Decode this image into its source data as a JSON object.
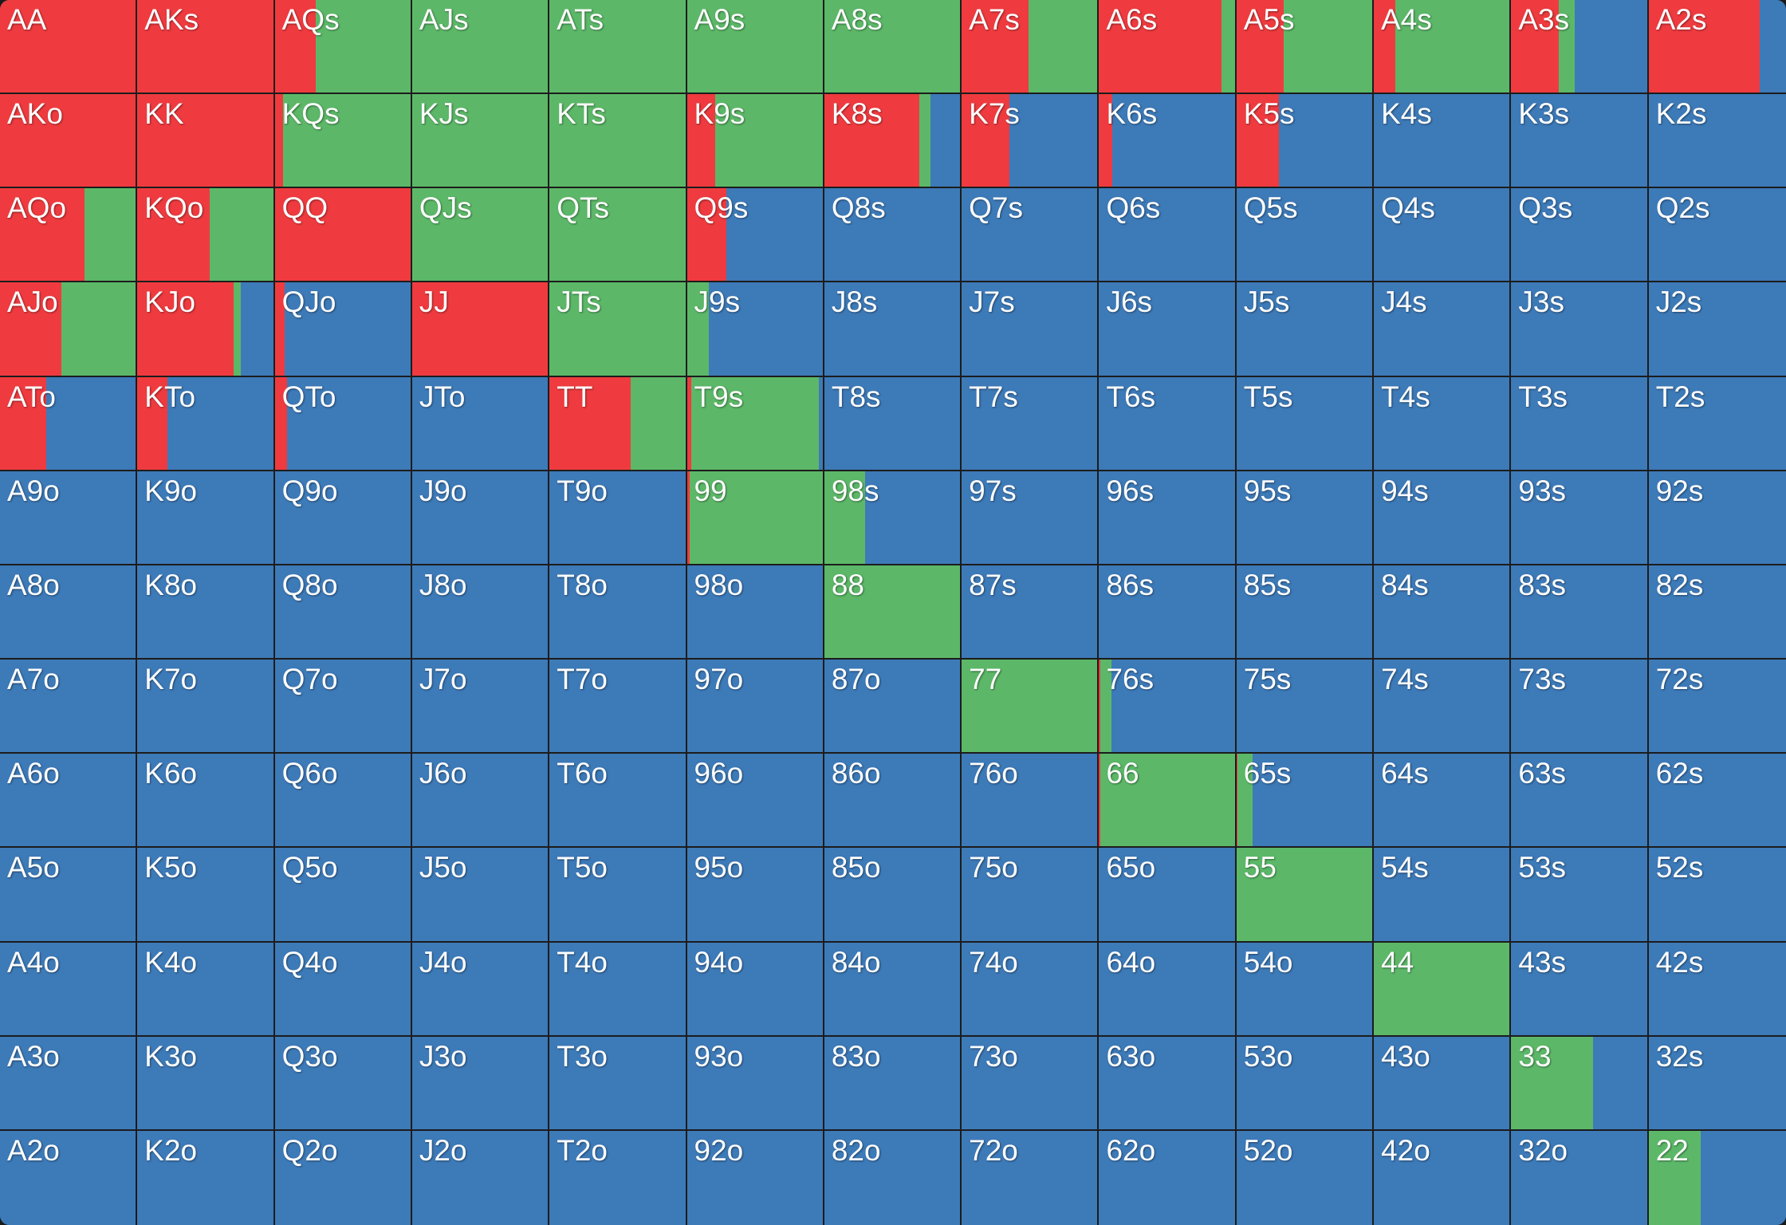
{
  "chart_data": {
    "type": "heatmap",
    "title": "",
    "description": "13x13 poker starting-hand range grid; each cell is a stacked horizontal bar of action frequencies (red, green, blue)",
    "legend": [
      {
        "key": "r",
        "color": "#ef3b3f"
      },
      {
        "key": "g",
        "color": "#5cb868"
      },
      {
        "key": "b",
        "color": "#3d7ab8"
      }
    ],
    "ranks": [
      "A",
      "K",
      "Q",
      "J",
      "T",
      "9",
      "8",
      "7",
      "6",
      "5",
      "4",
      "3",
      "2"
    ],
    "rows": [
      [
        {
          "hand": "AA",
          "r": 100,
          "g": 0,
          "b": 0
        },
        {
          "hand": "AKs",
          "r": 100,
          "g": 0,
          "b": 0
        },
        {
          "hand": "AQs",
          "r": 30,
          "g": 70,
          "b": 0
        },
        {
          "hand": "AJs",
          "r": 0,
          "g": 100,
          "b": 0
        },
        {
          "hand": "ATs",
          "r": 0,
          "g": 100,
          "b": 0
        },
        {
          "hand": "A9s",
          "r": 0,
          "g": 100,
          "b": 0
        },
        {
          "hand": "A8s",
          "r": 0,
          "g": 100,
          "b": 0
        },
        {
          "hand": "A7s",
          "r": 49,
          "g": 51,
          "b": 0
        },
        {
          "hand": "A6s",
          "r": 90,
          "g": 10,
          "b": 0
        },
        {
          "hand": "A5s",
          "r": 35,
          "g": 65,
          "b": 0
        },
        {
          "hand": "A4s",
          "r": 16,
          "g": 84,
          "b": 0
        },
        {
          "hand": "A3s",
          "r": 35,
          "g": 12,
          "b": 53
        },
        {
          "hand": "A2s",
          "r": 81,
          "g": 0,
          "b": 19
        }
      ],
      [
        {
          "hand": "AKo",
          "r": 100,
          "g": 0,
          "b": 0
        },
        {
          "hand": "KK",
          "r": 100,
          "g": 0,
          "b": 0
        },
        {
          "hand": "KQs",
          "r": 6,
          "g": 94,
          "b": 0
        },
        {
          "hand": "KJs",
          "r": 0,
          "g": 100,
          "b": 0
        },
        {
          "hand": "KTs",
          "r": 0,
          "g": 100,
          "b": 0
        },
        {
          "hand": "K9s",
          "r": 21,
          "g": 79,
          "b": 0
        },
        {
          "hand": "K8s",
          "r": 70,
          "g": 8,
          "b": 22
        },
        {
          "hand": "K7s",
          "r": 35,
          "g": 0,
          "b": 65
        },
        {
          "hand": "K6s",
          "r": 10,
          "g": 0,
          "b": 90
        },
        {
          "hand": "K5s",
          "r": 31,
          "g": 0,
          "b": 69
        },
        {
          "hand": "K4s",
          "r": 0,
          "g": 0,
          "b": 100
        },
        {
          "hand": "K3s",
          "r": 0,
          "g": 0,
          "b": 100
        },
        {
          "hand": "K2s",
          "r": 0,
          "g": 0,
          "b": 100
        }
      ],
      [
        {
          "hand": "AQo",
          "r": 62,
          "g": 38,
          "b": 0
        },
        {
          "hand": "KQo",
          "r": 53,
          "g": 47,
          "b": 0
        },
        {
          "hand": "QQ",
          "r": 100,
          "g": 0,
          "b": 0
        },
        {
          "hand": "QJs",
          "r": 0,
          "g": 100,
          "b": 0
        },
        {
          "hand": "QTs",
          "r": 0,
          "g": 100,
          "b": 0
        },
        {
          "hand": "Q9s",
          "r": 29,
          "g": 0,
          "b": 71
        },
        {
          "hand": "Q8s",
          "r": 0,
          "g": 0,
          "b": 100
        },
        {
          "hand": "Q7s",
          "r": 0,
          "g": 0,
          "b": 100
        },
        {
          "hand": "Q6s",
          "r": 0,
          "g": 0,
          "b": 100
        },
        {
          "hand": "Q5s",
          "r": 0,
          "g": 0,
          "b": 100
        },
        {
          "hand": "Q4s",
          "r": 0,
          "g": 0,
          "b": 100
        },
        {
          "hand": "Q3s",
          "r": 0,
          "g": 0,
          "b": 100
        },
        {
          "hand": "Q2s",
          "r": 0,
          "g": 0,
          "b": 100
        }
      ],
      [
        {
          "hand": "AJo",
          "r": 45,
          "g": 55,
          "b": 0
        },
        {
          "hand": "KJo",
          "r": 71,
          "g": 5,
          "b": 24
        },
        {
          "hand": "QJo",
          "r": 7,
          "g": 0,
          "b": 93
        },
        {
          "hand": "JJ",
          "r": 100,
          "g": 0,
          "b": 0
        },
        {
          "hand": "JTs",
          "r": 0,
          "g": 100,
          "b": 0
        },
        {
          "hand": "J9s",
          "r": 0,
          "g": 16,
          "b": 84
        },
        {
          "hand": "J8s",
          "r": 0,
          "g": 0,
          "b": 100
        },
        {
          "hand": "J7s",
          "r": 0,
          "g": 0,
          "b": 100
        },
        {
          "hand": "J6s",
          "r": 0,
          "g": 0,
          "b": 100
        },
        {
          "hand": "J5s",
          "r": 0,
          "g": 0,
          "b": 100
        },
        {
          "hand": "J4s",
          "r": 0,
          "g": 0,
          "b": 100
        },
        {
          "hand": "J3s",
          "r": 0,
          "g": 0,
          "b": 100
        },
        {
          "hand": "J2s",
          "r": 0,
          "g": 0,
          "b": 100
        }
      ],
      [
        {
          "hand": "ATo",
          "r": 34,
          "g": 0,
          "b": 66
        },
        {
          "hand": "KTo",
          "r": 22,
          "g": 0,
          "b": 78
        },
        {
          "hand": "QTo",
          "r": 9,
          "g": 0,
          "b": 91
        },
        {
          "hand": "JTo",
          "r": 0,
          "g": 0,
          "b": 100
        },
        {
          "hand": "TT",
          "r": 60,
          "g": 40,
          "b": 0
        },
        {
          "hand": "T9s",
          "r": 3,
          "g": 94,
          "b": 3
        },
        {
          "hand": "T8s",
          "r": 0,
          "g": 0,
          "b": 100
        },
        {
          "hand": "T7s",
          "r": 0,
          "g": 0,
          "b": 100
        },
        {
          "hand": "T6s",
          "r": 0,
          "g": 0,
          "b": 100
        },
        {
          "hand": "T5s",
          "r": 0,
          "g": 0,
          "b": 100
        },
        {
          "hand": "T4s",
          "r": 0,
          "g": 0,
          "b": 100
        },
        {
          "hand": "T3s",
          "r": 0,
          "g": 0,
          "b": 100
        },
        {
          "hand": "T2s",
          "r": 0,
          "g": 0,
          "b": 100
        }
      ],
      [
        {
          "hand": "A9o",
          "r": 0,
          "g": 0,
          "b": 100
        },
        {
          "hand": "K9o",
          "r": 0,
          "g": 0,
          "b": 100
        },
        {
          "hand": "Q9o",
          "r": 0,
          "g": 0,
          "b": 100
        },
        {
          "hand": "J9o",
          "r": 0,
          "g": 0,
          "b": 100
        },
        {
          "hand": "T9o",
          "r": 0,
          "g": 0,
          "b": 100
        },
        {
          "hand": "99",
          "r": 2,
          "g": 98,
          "b": 0
        },
        {
          "hand": "98s",
          "r": 0,
          "g": 30,
          "b": 70
        },
        {
          "hand": "97s",
          "r": 0,
          "g": 0,
          "b": 100
        },
        {
          "hand": "96s",
          "r": 0,
          "g": 0,
          "b": 100
        },
        {
          "hand": "95s",
          "r": 0,
          "g": 0,
          "b": 100
        },
        {
          "hand": "94s",
          "r": 0,
          "g": 0,
          "b": 100
        },
        {
          "hand": "93s",
          "r": 0,
          "g": 0,
          "b": 100
        },
        {
          "hand": "92s",
          "r": 0,
          "g": 0,
          "b": 100
        }
      ],
      [
        {
          "hand": "A8o",
          "r": 0,
          "g": 0,
          "b": 100
        },
        {
          "hand": "K8o",
          "r": 0,
          "g": 0,
          "b": 100
        },
        {
          "hand": "Q8o",
          "r": 0,
          "g": 0,
          "b": 100
        },
        {
          "hand": "J8o",
          "r": 0,
          "g": 0,
          "b": 100
        },
        {
          "hand": "T8o",
          "r": 0,
          "g": 0,
          "b": 100
        },
        {
          "hand": "98o",
          "r": 0,
          "g": 0,
          "b": 100
        },
        {
          "hand": "88",
          "r": 0,
          "g": 100,
          "b": 0
        },
        {
          "hand": "87s",
          "r": 0,
          "g": 0,
          "b": 100
        },
        {
          "hand": "86s",
          "r": 0,
          "g": 0,
          "b": 100
        },
        {
          "hand": "85s",
          "r": 0,
          "g": 0,
          "b": 100
        },
        {
          "hand": "84s",
          "r": 0,
          "g": 0,
          "b": 100
        },
        {
          "hand": "83s",
          "r": 0,
          "g": 0,
          "b": 100
        },
        {
          "hand": "82s",
          "r": 0,
          "g": 0,
          "b": 100
        }
      ],
      [
        {
          "hand": "A7o",
          "r": 0,
          "g": 0,
          "b": 100
        },
        {
          "hand": "K7o",
          "r": 0,
          "g": 0,
          "b": 100
        },
        {
          "hand": "Q7o",
          "r": 0,
          "g": 0,
          "b": 100
        },
        {
          "hand": "J7o",
          "r": 0,
          "g": 0,
          "b": 100
        },
        {
          "hand": "T7o",
          "r": 0,
          "g": 0,
          "b": 100
        },
        {
          "hand": "97o",
          "r": 0,
          "g": 0,
          "b": 100
        },
        {
          "hand": "87o",
          "r": 0,
          "g": 0,
          "b": 100
        },
        {
          "hand": "77",
          "r": 0,
          "g": 100,
          "b": 0
        },
        {
          "hand": "76s",
          "r": 1,
          "g": 8,
          "b": 91
        },
        {
          "hand": "75s",
          "r": 0,
          "g": 0,
          "b": 100
        },
        {
          "hand": "74s",
          "r": 0,
          "g": 0,
          "b": 100
        },
        {
          "hand": "73s",
          "r": 0,
          "g": 0,
          "b": 100
        },
        {
          "hand": "72s",
          "r": 0,
          "g": 0,
          "b": 100
        }
      ],
      [
        {
          "hand": "A6o",
          "r": 0,
          "g": 0,
          "b": 100
        },
        {
          "hand": "K6o",
          "r": 0,
          "g": 0,
          "b": 100
        },
        {
          "hand": "Q6o",
          "r": 0,
          "g": 0,
          "b": 100
        },
        {
          "hand": "J6o",
          "r": 0,
          "g": 0,
          "b": 100
        },
        {
          "hand": "T6o",
          "r": 0,
          "g": 0,
          "b": 100
        },
        {
          "hand": "96o",
          "r": 0,
          "g": 0,
          "b": 100
        },
        {
          "hand": "86o",
          "r": 0,
          "g": 0,
          "b": 100
        },
        {
          "hand": "76o",
          "r": 0,
          "g": 0,
          "b": 100
        },
        {
          "hand": "66",
          "r": 1,
          "g": 99,
          "b": 0
        },
        {
          "hand": "65s",
          "r": 1,
          "g": 11,
          "b": 88
        },
        {
          "hand": "64s",
          "r": 0,
          "g": 0,
          "b": 100
        },
        {
          "hand": "63s",
          "r": 0,
          "g": 0,
          "b": 100
        },
        {
          "hand": "62s",
          "r": 0,
          "g": 0,
          "b": 100
        }
      ],
      [
        {
          "hand": "A5o",
          "r": 0,
          "g": 0,
          "b": 100
        },
        {
          "hand": "K5o",
          "r": 0,
          "g": 0,
          "b": 100
        },
        {
          "hand": "Q5o",
          "r": 0,
          "g": 0,
          "b": 100
        },
        {
          "hand": "J5o",
          "r": 0,
          "g": 0,
          "b": 100
        },
        {
          "hand": "T5o",
          "r": 0,
          "g": 0,
          "b": 100
        },
        {
          "hand": "95o",
          "r": 0,
          "g": 0,
          "b": 100
        },
        {
          "hand": "85o",
          "r": 0,
          "g": 0,
          "b": 100
        },
        {
          "hand": "75o",
          "r": 0,
          "g": 0,
          "b": 100
        },
        {
          "hand": "65o",
          "r": 0,
          "g": 0,
          "b": 100
        },
        {
          "hand": "55",
          "r": 0,
          "g": 100,
          "b": 0
        },
        {
          "hand": "54s",
          "r": 0,
          "g": 0,
          "b": 100
        },
        {
          "hand": "53s",
          "r": 0,
          "g": 0,
          "b": 100
        },
        {
          "hand": "52s",
          "r": 0,
          "g": 0,
          "b": 100
        }
      ],
      [
        {
          "hand": "A4o",
          "r": 0,
          "g": 0,
          "b": 100
        },
        {
          "hand": "K4o",
          "r": 0,
          "g": 0,
          "b": 100
        },
        {
          "hand": "Q4o",
          "r": 0,
          "g": 0,
          "b": 100
        },
        {
          "hand": "J4o",
          "r": 0,
          "g": 0,
          "b": 100
        },
        {
          "hand": "T4o",
          "r": 0,
          "g": 0,
          "b": 100
        },
        {
          "hand": "94o",
          "r": 0,
          "g": 0,
          "b": 100
        },
        {
          "hand": "84o",
          "r": 0,
          "g": 0,
          "b": 100
        },
        {
          "hand": "74o",
          "r": 0,
          "g": 0,
          "b": 100
        },
        {
          "hand": "64o",
          "r": 0,
          "g": 0,
          "b": 100
        },
        {
          "hand": "54o",
          "r": 0,
          "g": 0,
          "b": 100
        },
        {
          "hand": "44",
          "r": 0,
          "g": 100,
          "b": 0
        },
        {
          "hand": "43s",
          "r": 0,
          "g": 0,
          "b": 100
        },
        {
          "hand": "42s",
          "r": 0,
          "g": 0,
          "b": 100
        }
      ],
      [
        {
          "hand": "A3o",
          "r": 0,
          "g": 0,
          "b": 100
        },
        {
          "hand": "K3o",
          "r": 0,
          "g": 0,
          "b": 100
        },
        {
          "hand": "Q3o",
          "r": 0,
          "g": 0,
          "b": 100
        },
        {
          "hand": "J3o",
          "r": 0,
          "g": 0,
          "b": 100
        },
        {
          "hand": "T3o",
          "r": 0,
          "g": 0,
          "b": 100
        },
        {
          "hand": "93o",
          "r": 0,
          "g": 0,
          "b": 100
        },
        {
          "hand": "83o",
          "r": 0,
          "g": 0,
          "b": 100
        },
        {
          "hand": "73o",
          "r": 0,
          "g": 0,
          "b": 100
        },
        {
          "hand": "63o",
          "r": 0,
          "g": 0,
          "b": 100
        },
        {
          "hand": "53o",
          "r": 0,
          "g": 0,
          "b": 100
        },
        {
          "hand": "43o",
          "r": 0,
          "g": 0,
          "b": 100
        },
        {
          "hand": "33",
          "r": 0,
          "g": 60,
          "b": 40
        },
        {
          "hand": "32s",
          "r": 0,
          "g": 0,
          "b": 100
        }
      ],
      [
        {
          "hand": "A2o",
          "r": 0,
          "g": 0,
          "b": 100
        },
        {
          "hand": "K2o",
          "r": 0,
          "g": 0,
          "b": 100
        },
        {
          "hand": "Q2o",
          "r": 0,
          "g": 0,
          "b": 100
        },
        {
          "hand": "J2o",
          "r": 0,
          "g": 0,
          "b": 100
        },
        {
          "hand": "T2o",
          "r": 0,
          "g": 0,
          "b": 100
        },
        {
          "hand": "92o",
          "r": 0,
          "g": 0,
          "b": 100
        },
        {
          "hand": "82o",
          "r": 0,
          "g": 0,
          "b": 100
        },
        {
          "hand": "72o",
          "r": 0,
          "g": 0,
          "b": 100
        },
        {
          "hand": "62o",
          "r": 0,
          "g": 0,
          "b": 100
        },
        {
          "hand": "52o",
          "r": 0,
          "g": 0,
          "b": 100
        },
        {
          "hand": "42o",
          "r": 0,
          "g": 0,
          "b": 100
        },
        {
          "hand": "32o",
          "r": 0,
          "g": 0,
          "b": 100
        },
        {
          "hand": "22",
          "r": 0,
          "g": 38,
          "b": 62
        }
      ]
    ]
  }
}
